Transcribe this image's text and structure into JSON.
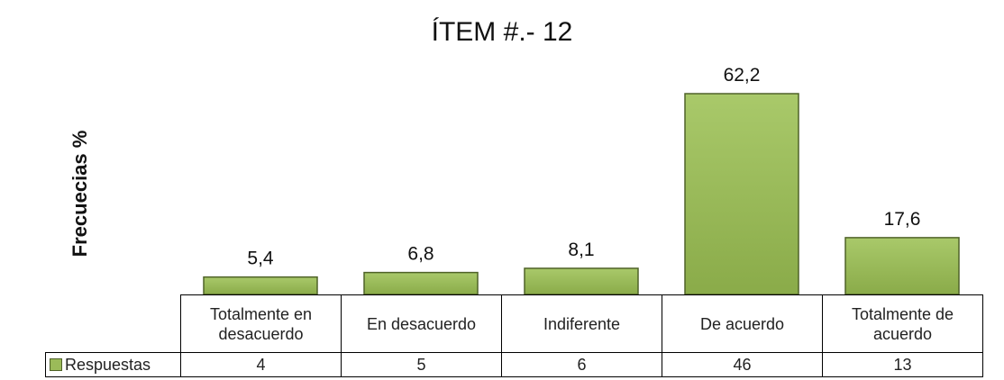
{
  "chart_data": {
    "type": "bar",
    "title": "ÍTEM #.- 12",
    "y_label": "Frecuecias %",
    "categories": [
      "Totalmente en desacuerdo",
      "En desacuerdo",
      "Indiferente",
      "De acuerdo",
      "Totalmente de acuerdo"
    ],
    "series": [
      {
        "name": "Respuestas",
        "color": "#9bbb59",
        "values": [
          5.4,
          6.8,
          8.1,
          62.2,
          17.6
        ],
        "value_labels": [
          "5,4",
          "6,8",
          "8,1",
          "62,2",
          "17,6"
        ]
      }
    ],
    "data_table": {
      "values": [
        4,
        5,
        6,
        46,
        13
      ]
    }
  }
}
